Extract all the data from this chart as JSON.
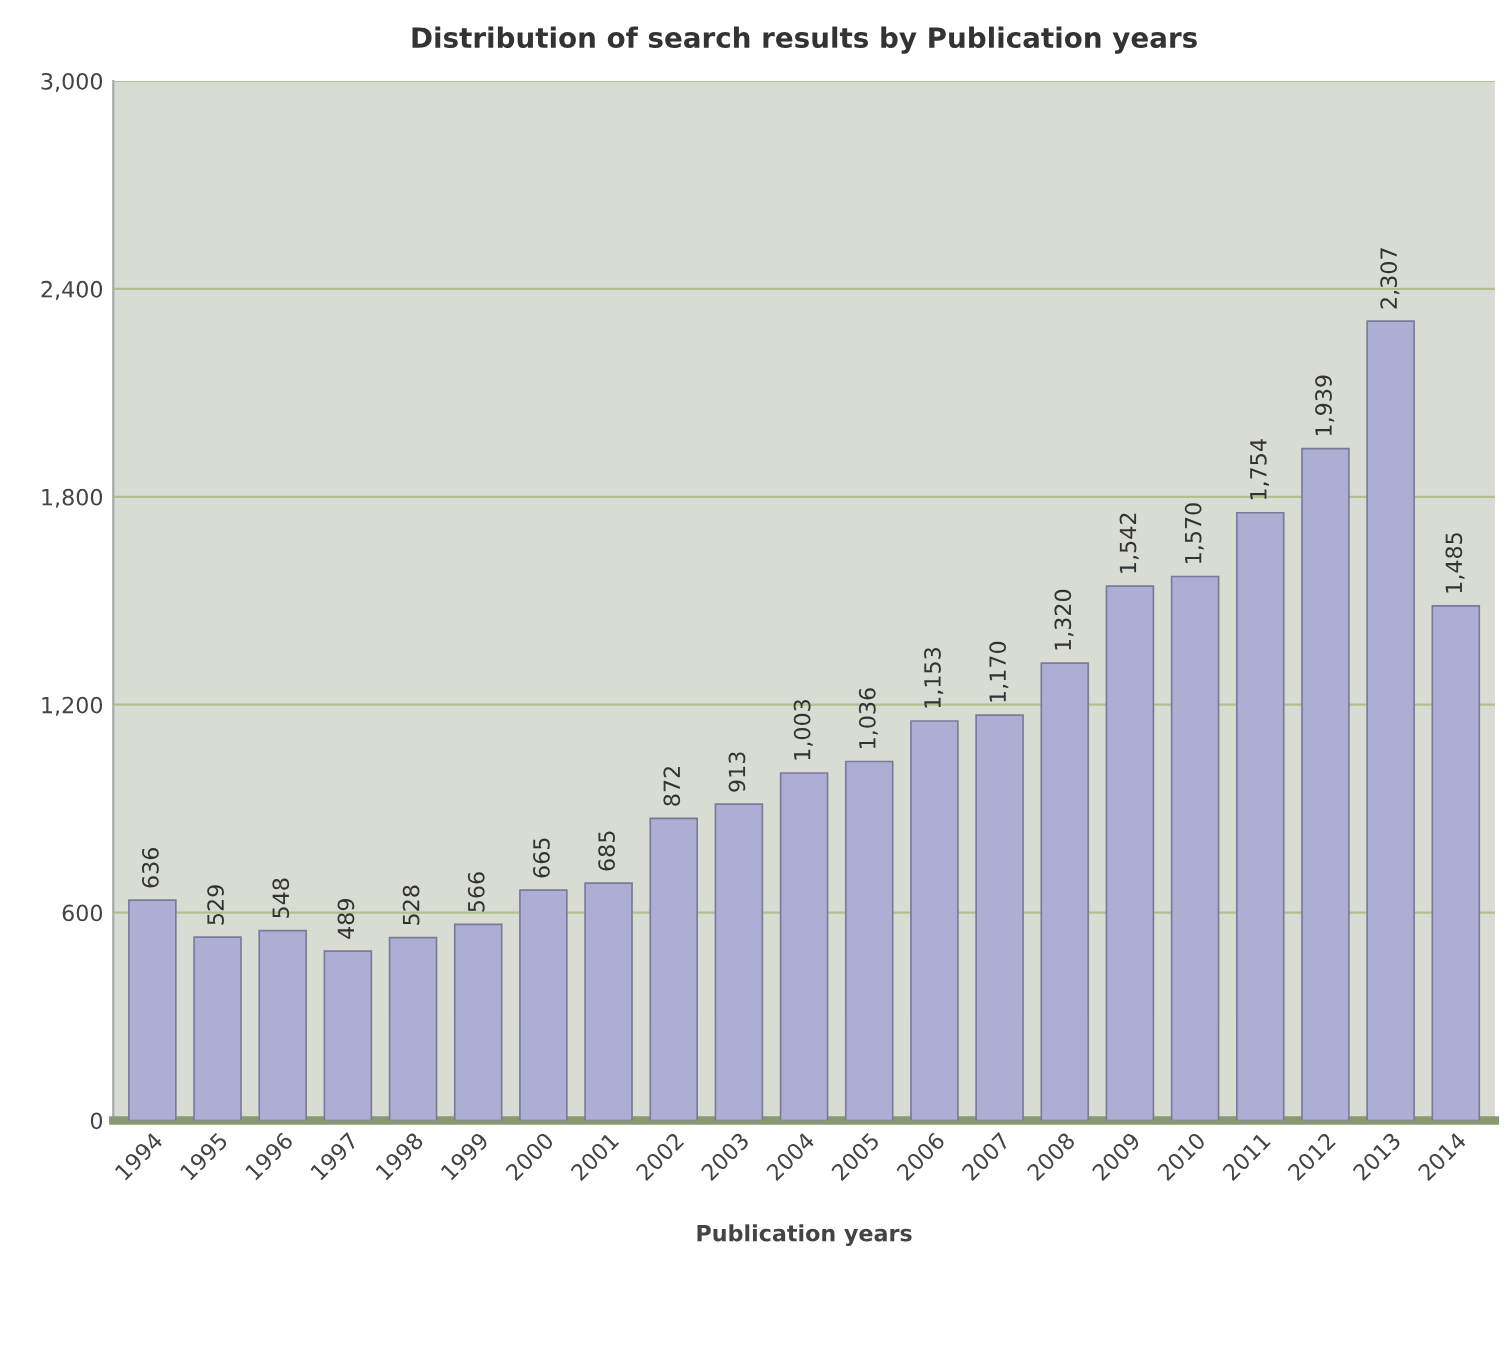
{
  "chart_data": {
    "type": "bar",
    "title": "Distribution of search results by Publication years",
    "xlabel": "Publication years",
    "categories": [
      "1994",
      "1995",
      "1996",
      "1997",
      "1998",
      "1999",
      "2000",
      "2001",
      "2002",
      "2003",
      "2004",
      "2005",
      "2006",
      "2007",
      "2008",
      "2009",
      "2010",
      "2011",
      "2012",
      "2013",
      "2014"
    ],
    "values": [
      636,
      529,
      548,
      489,
      528,
      566,
      665,
      685,
      872,
      913,
      1003,
      1036,
      1153,
      1170,
      1320,
      1542,
      1570,
      1754,
      1939,
      2307,
      1485
    ],
    "value_labels": [
      "636",
      "529",
      "548",
      "489",
      "528",
      "566",
      "665",
      "685",
      "872",
      "913",
      "1,003",
      "1,036",
      "1,153",
      "1,170",
      "1,320",
      "1,542",
      "1,570",
      "1,754",
      "1,939",
      "2,307",
      "1,485"
    ],
    "color": "#aeaed4",
    "ylim": [
      0,
      3000
    ],
    "yticks": [
      {
        "value": 0,
        "label": "0"
      },
      {
        "value": 600,
        "label": "600"
      },
      {
        "value": 1200,
        "label": "1,200"
      },
      {
        "value": 1800,
        "label": "1,800"
      },
      {
        "value": 2400,
        "label": "2,400"
      },
      {
        "value": 3000,
        "label": "3,000"
      }
    ],
    "grid": "y"
  }
}
